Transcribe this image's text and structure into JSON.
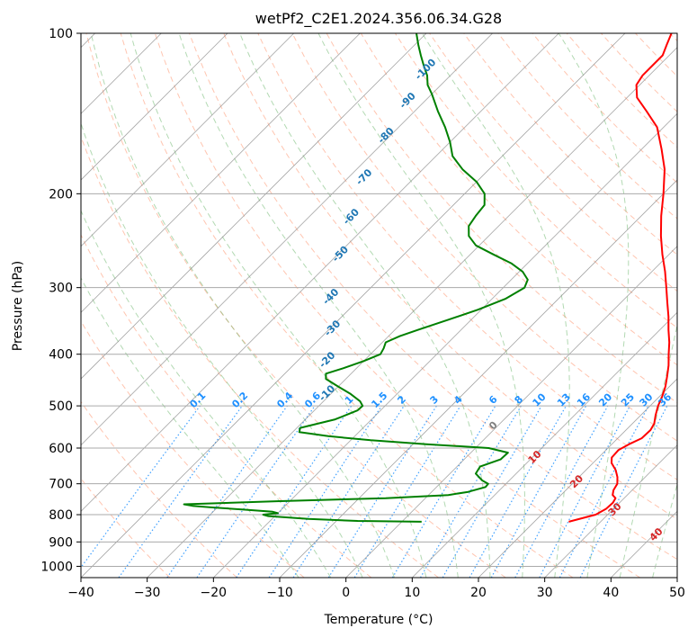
{
  "chart_data": {
    "type": "line",
    "title": "wetPf2_C2E1.2024.356.06.34.G28",
    "xlabel": "Temperature (°C)",
    "ylabel": "Pressure (hPa)",
    "xlim": [
      -40,
      50
    ],
    "ylim": [
      1050,
      100
    ],
    "yscale": "log",
    "skew": 45,
    "grid": true,
    "x_ticks": [
      "−40",
      "−30",
      "−20",
      "−10",
      "0",
      "10",
      "20",
      "30",
      "40",
      "50"
    ],
    "x_tick_values": [
      -40,
      -30,
      -20,
      -10,
      0,
      10,
      20,
      30,
      40,
      50
    ],
    "y_ticks": [
      "100",
      "200",
      "300",
      "400",
      "500",
      "600",
      "700",
      "800",
      "900",
      "1000"
    ],
    "y_tick_values": [
      100,
      200,
      300,
      400,
      500,
      600,
      700,
      800,
      900,
      1000
    ],
    "series": [
      {
        "role": "temperature",
        "color": "#ff0000",
        "points": [
          [
            825,
            25.2
          ],
          [
            800,
            28.2
          ],
          [
            780,
            28.9
          ],
          [
            760,
            29.0
          ],
          [
            745,
            28.7
          ],
          [
            735,
            27.8
          ],
          [
            720,
            27.2
          ],
          [
            700,
            26.8
          ],
          [
            680,
            25.8
          ],
          [
            660,
            24.5
          ],
          [
            640,
            22.8
          ],
          [
            625,
            22.0
          ],
          [
            605,
            21.9
          ],
          [
            590,
            22.6
          ],
          [
            575,
            23.6
          ],
          [
            555,
            23.7
          ],
          [
            540,
            23.3
          ],
          [
            520,
            22.2
          ],
          [
            500,
            21.2
          ],
          [
            480,
            20.4
          ],
          [
            460,
            19.4
          ],
          [
            440,
            18.1
          ],
          [
            420,
            16.7
          ],
          [
            400,
            15.0
          ],
          [
            380,
            13.3
          ],
          [
            360,
            11.3
          ],
          [
            340,
            9.3
          ],
          [
            320,
            7.0
          ],
          [
            300,
            4.6
          ],
          [
            280,
            2.0
          ],
          [
            260,
            -1.0
          ],
          [
            240,
            -4.0
          ],
          [
            220,
            -7.0
          ],
          [
            200,
            -10.0
          ],
          [
            180,
            -13.5
          ],
          [
            165,
            -17.0
          ],
          [
            150,
            -21.0
          ],
          [
            140,
            -25.0
          ],
          [
            132,
            -28.5
          ],
          [
            125,
            -30.5
          ],
          [
            120,
            -31.0
          ],
          [
            115,
            -31.0
          ],
          [
            110,
            -31.0
          ],
          [
            105,
            -32.0
          ],
          [
            100,
            -33.0
          ]
        ]
      },
      {
        "role": "dewpoint",
        "color": "#008000",
        "points": [
          [
            825,
            3.0
          ],
          [
            822,
            -6.8
          ],
          [
            815,
            -14.5
          ],
          [
            805,
            -21.0
          ],
          [
            800,
            -22.0
          ],
          [
            795,
            -20.0
          ],
          [
            790,
            -21.0
          ],
          [
            782,
            -26.0
          ],
          [
            775,
            -31.0
          ],
          [
            770,
            -34.0
          ],
          [
            765,
            -35.5
          ],
          [
            755,
            -22.0
          ],
          [
            745,
            -6.0
          ],
          [
            735,
            3.0
          ],
          [
            725,
            5.5
          ],
          [
            710,
            7.4
          ],
          [
            700,
            7.3
          ],
          [
            690,
            5.9
          ],
          [
            670,
            3.9
          ],
          [
            650,
            3.5
          ],
          [
            630,
            5.5
          ],
          [
            612,
            5.6
          ],
          [
            600,
            2.0
          ],
          [
            590,
            -8.0
          ],
          [
            580,
            -17.0
          ],
          [
            570,
            -24.0
          ],
          [
            560,
            -29.0
          ],
          [
            550,
            -29.5
          ],
          [
            540,
            -27.5
          ],
          [
            530,
            -25.5
          ],
          [
            520,
            -24.5
          ],
          [
            510,
            -23.5
          ],
          [
            500,
            -23.4
          ],
          [
            490,
            -24.5
          ],
          [
            475,
            -27.0
          ],
          [
            460,
            -30.0
          ],
          [
            445,
            -33.0
          ],
          [
            435,
            -33.8
          ],
          [
            425,
            -32.0
          ],
          [
            412,
            -30.0
          ],
          [
            400,
            -28.5
          ],
          [
            390,
            -28.9
          ],
          [
            380,
            -29.5
          ],
          [
            370,
            -28.3
          ],
          [
            360,
            -26.5
          ],
          [
            345,
            -23.5
          ],
          [
            330,
            -20.5
          ],
          [
            315,
            -18.0
          ],
          [
            300,
            -16.8
          ],
          [
            290,
            -17.5
          ],
          [
            280,
            -19.5
          ],
          [
            270,
            -22.5
          ],
          [
            260,
            -26.5
          ],
          [
            250,
            -30.5
          ],
          [
            240,
            -33.0
          ],
          [
            230,
            -34.5
          ],
          [
            220,
            -35.0
          ],
          [
            210,
            -35.3
          ],
          [
            200,
            -37.0
          ],
          [
            190,
            -40.0
          ],
          [
            180,
            -44.0
          ],
          [
            170,
            -47.5
          ],
          [
            160,
            -50.0
          ],
          [
            150,
            -53.0
          ],
          [
            140,
            -56.5
          ],
          [
            130,
            -60.0
          ],
          [
            125,
            -62.0
          ],
          [
            120,
            -63.5
          ],
          [
            115,
            -65.5
          ],
          [
            110,
            -67.5
          ],
          [
            105,
            -69.5
          ],
          [
            100,
            -71.5
          ]
        ]
      }
    ],
    "isotherms_every": 10,
    "dry_adiabats_theta_C": [
      -30,
      -20,
      -10,
      0,
      10,
      20,
      30,
      40,
      50,
      60,
      70,
      80,
      90,
      100,
      110,
      120,
      130,
      140,
      150,
      160,
      170,
      180,
      190,
      200
    ],
    "moist_adiabats_thetaw_C": [
      -10,
      -5,
      0,
      5,
      10,
      15,
      20,
      25,
      30,
      35,
      40,
      45
    ],
    "mixing_ratio_lines_gkg": [
      0.1,
      0.2,
      0.4,
      0.6,
      1,
      1.5,
      2,
      3,
      4,
      6,
      8,
      10,
      13,
      16,
      20,
      25,
      30,
      36
    ],
    "mixing_ratio_labels": [
      "0.1",
      "0.2",
      "0.4",
      "0.6",
      "1",
      "1.5",
      "2",
      "3",
      "4",
      "6",
      "8",
      "10",
      "13",
      "16",
      "20",
      "25",
      "30",
      "36"
    ],
    "mixing_ratio_label_color": "#1e90ff",
    "dry_adiabat_labels": [
      {
        "text": "-100",
        "p": 118,
        "T": -64
      },
      {
        "text": "-90",
        "p": 135,
        "T": -62
      },
      {
        "text": "-80",
        "p": 157,
        "T": -60
      },
      {
        "text": "-70",
        "p": 188,
        "T": -57
      },
      {
        "text": "-60",
        "p": 223,
        "T": -53
      },
      {
        "text": "-50",
        "p": 262,
        "T": -49
      },
      {
        "text": "-40",
        "p": 315,
        "T": -44
      },
      {
        "text": "-30",
        "p": 361,
        "T": -39
      },
      {
        "text": "-20",
        "p": 414,
        "T": -35
      },
      {
        "text": "-10",
        "p": 478,
        "T": -30
      }
    ],
    "dry_adiabat_label_color": "#1f77b4",
    "moist_adiabat_labels": [
      {
        "text": "0",
        "p": 550,
        "T": 0
      },
      {
        "text": "10",
        "p": 630,
        "T": 11
      },
      {
        "text": "20",
        "p": 700,
        "T": 21
      },
      {
        "text": "30",
        "p": 790,
        "T": 31
      },
      {
        "text": "40",
        "p": 880,
        "T": 41
      }
    ],
    "moist_adiabat_label_colors": {
      "zero": "#808080",
      "positive": "#d62728"
    },
    "colors": {
      "isotherm": "#888888",
      "isobar": "#aaaaaa",
      "dry_adiabat": "#ff7f50",
      "moist_adiabat": "#55aa55",
      "mixing_ratio": "#1e90ff",
      "zero_isotherm_curve": "#d2b48c"
    }
  }
}
